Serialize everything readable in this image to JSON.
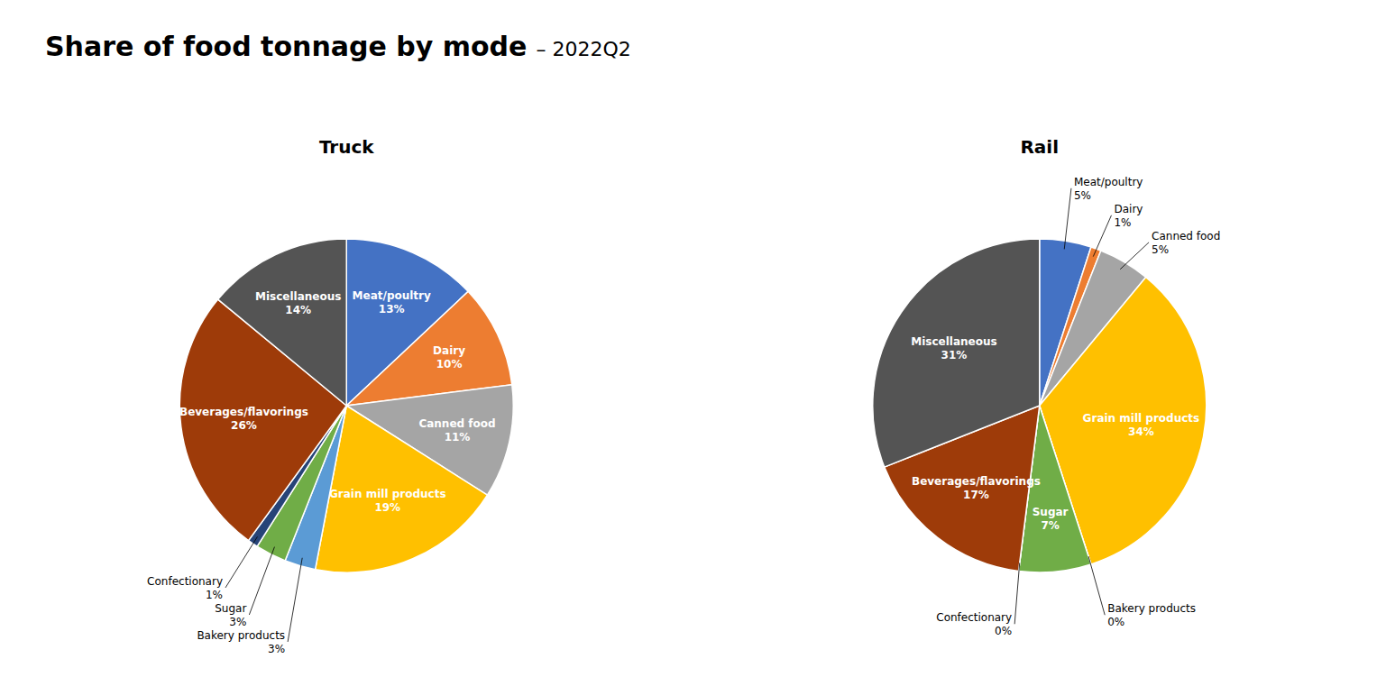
{
  "title": "Share of food tonnage by mode",
  "subtitle": "– 2022Q2",
  "chart_data": [
    {
      "type": "pie",
      "title": "Truck",
      "categories": [
        "Meat/poultry",
        "Dairy",
        "Canned food",
        "Grain mill products",
        "Bakery products",
        "Sugar",
        "Confectionary",
        "Beverages/flavorings",
        "Miscellaneous"
      ],
      "values": [
        13,
        10,
        11,
        19,
        3,
        3,
        1,
        26,
        14
      ],
      "value_labels": [
        "13%",
        "10%",
        "11%",
        "19%",
        "3%",
        "3%",
        "1%",
        "26%",
        "14%"
      ],
      "colors": [
        "#4472C4",
        "#ED7D31",
        "#A5A5A5",
        "#FFC000",
        "#5B9BD5",
        "#70AD47",
        "#264478",
        "#9E3B09",
        "#545454"
      ],
      "data_labels": true
    },
    {
      "type": "pie",
      "title": "Rail",
      "categories": [
        "Meat/poultry",
        "Dairy",
        "Canned food",
        "Grain mill products",
        "Bakery products",
        "Sugar",
        "Confectionary",
        "Beverages/flavorings",
        "Miscellaneous"
      ],
      "values": [
        5,
        1,
        5,
        34,
        0,
        7,
        0,
        17,
        31
      ],
      "value_labels": [
        "5%",
        "1%",
        "5%",
        "34%",
        "0%",
        "7%",
        "0%",
        "17%",
        "31%"
      ],
      "colors": [
        "#4472C4",
        "#ED7D31",
        "#A5A5A5",
        "#FFC000",
        "#5B9BD5",
        "#70AD47",
        "#264478",
        "#9E3B09",
        "#545454"
      ],
      "data_labels": true
    }
  ]
}
